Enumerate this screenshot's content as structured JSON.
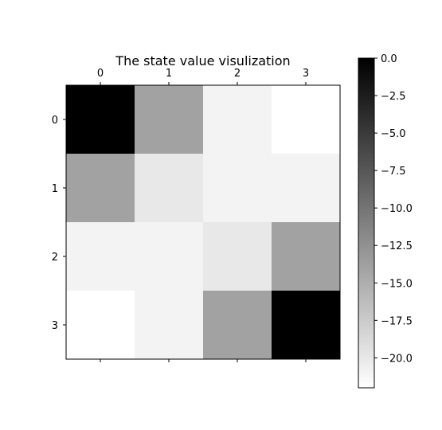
{
  "chart_data": {
    "type": "heatmap",
    "title": "The state value visulization",
    "x_ticks": [
      "0",
      "1",
      "2",
      "3"
    ],
    "y_ticks": [
      "0",
      "1",
      "2",
      "3"
    ],
    "values": [
      [
        0,
        -14,
        -21,
        -22
      ],
      [
        -14,
        -20,
        -21,
        -21
      ],
      [
        -21,
        -21,
        -20,
        -14
      ],
      [
        -22,
        -21,
        -14,
        0
      ]
    ],
    "colormap": "gray",
    "color_min": -22,
    "color_max": 0,
    "colorbar_ticks": [
      "0.0",
      "−2.5",
      "−5.0",
      "−7.5",
      "−10.0",
      "−12.5",
      "−15.0",
      "−17.5",
      "−20.0"
    ],
    "colorbar_tick_values": [
      0,
      -2.5,
      -5,
      -7.5,
      -10,
      -12.5,
      -15,
      -17.5,
      -20
    ]
  }
}
